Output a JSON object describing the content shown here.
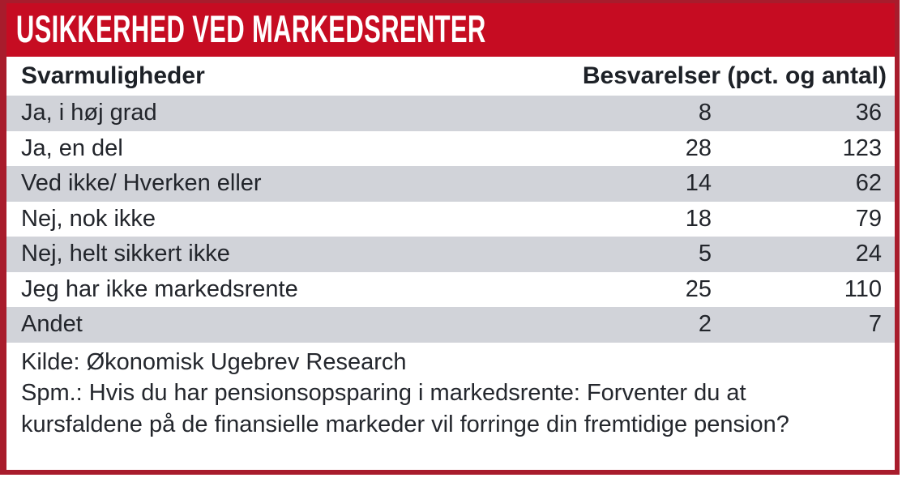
{
  "header": {
    "title": "USIKKERHED VED MARKEDSRENTER"
  },
  "table": {
    "col_left": "Svarmuligheder",
    "col_right": "Besvarelser (pct. og antal)",
    "rows": [
      {
        "label": "Ja, i høj grad",
        "pct": "8",
        "antal": "36"
      },
      {
        "label": "Ja, en del",
        "pct": "28",
        "antal": "123"
      },
      {
        "label": "Ved ikke/ Hverken eller",
        "pct": "14",
        "antal": "62"
      },
      {
        "label": "Nej, nok ikke",
        "pct": "18",
        "antal": "79"
      },
      {
        "label": "Nej, helt sikkert ikke",
        "pct": "5",
        "antal": "24"
      },
      {
        "label": "Jeg har ikke markedsrente",
        "pct": "25",
        "antal": "110"
      },
      {
        "label": "Andet",
        "pct": "2",
        "antal": "7"
      }
    ]
  },
  "footer": {
    "source": "Kilde: Økonomisk Ugebrev Research",
    "question": "Spm.: Hvis du har pensionsopsparing i markedsrente: Forventer du at kursfaldene på de finansielle markeder vil forringe din fremtidige pension?"
  },
  "colors": {
    "border": "#a81c2c",
    "title_bar": "#c60c22",
    "row_alt": "#d1d3d9",
    "text": "#22252b"
  },
  "chart_data": {
    "type": "table",
    "title": "USIKKERHED VED MARKEDSRENTER",
    "columns": [
      "Svarmuligheder",
      "Besvarelser (pct.)",
      "Besvarelser (antal)"
    ],
    "categories": [
      "Ja, i høj grad",
      "Ja, en del",
      "Ved ikke/ Hverken eller",
      "Nej, nok ikke",
      "Nej, helt sikkert ikke",
      "Jeg har ikke markedsrente",
      "Andet"
    ],
    "series": [
      {
        "name": "Besvarelser (pct.)",
        "values": [
          8,
          28,
          14,
          18,
          5,
          25,
          2
        ]
      },
      {
        "name": "Besvarelser (antal)",
        "values": [
          36,
          123,
          62,
          79,
          24,
          110,
          7
        ]
      }
    ],
    "source": "Kilde: Økonomisk Ugebrev Research",
    "question": "Spm.: Hvis du har pensionsopsparing i markedsrente: Forventer du at kursfaldene på de finansielle markeder vil forringe din fremtidige pension?"
  }
}
